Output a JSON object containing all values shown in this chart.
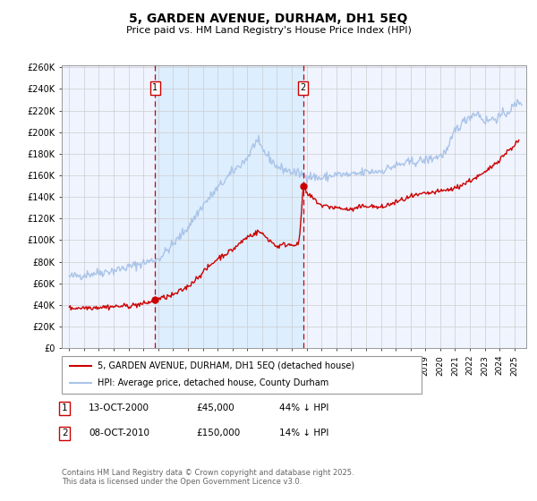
{
  "title": "5, GARDEN AVENUE, DURHAM, DH1 5EQ",
  "subtitle": "Price paid vs. HM Land Registry's House Price Index (HPI)",
  "yticks": [
    0,
    20000,
    40000,
    60000,
    80000,
    100000,
    120000,
    140000,
    160000,
    180000,
    200000,
    220000,
    240000,
    260000
  ],
  "ytick_labels": [
    "£0",
    "£20K",
    "£40K",
    "£60K",
    "£80K",
    "£100K",
    "£120K",
    "£140K",
    "£160K",
    "£180K",
    "£200K",
    "£220K",
    "£240K",
    "£260K"
  ],
  "hpi_color": "#aac4e8",
  "price_color": "#cc0000",
  "sale1_date": 2000.79,
  "sale1_price": 45000,
  "sale1_label": "1",
  "sale2_date": 2010.77,
  "sale2_price": 150000,
  "sale2_label": "2",
  "shading_color": "#ddeeff",
  "vline_color": "#cc0000",
  "grid_color": "#cccccc",
  "bg_color": "#f0f4ff",
  "legend_label_price": "5, GARDEN AVENUE, DURHAM, DH1 5EQ (detached house)",
  "legend_label_hpi": "HPI: Average price, detached house, County Durham",
  "note1_date": "13-OCT-2000",
  "note1_price": "£45,000",
  "note1_pct": "44% ↓ HPI",
  "note2_date": "08-OCT-2010",
  "note2_price": "£150,000",
  "note2_pct": "14% ↓ HPI",
  "footer": "Contains HM Land Registry data © Crown copyright and database right 2025.\nThis data is licensed under the Open Government Licence v3.0."
}
